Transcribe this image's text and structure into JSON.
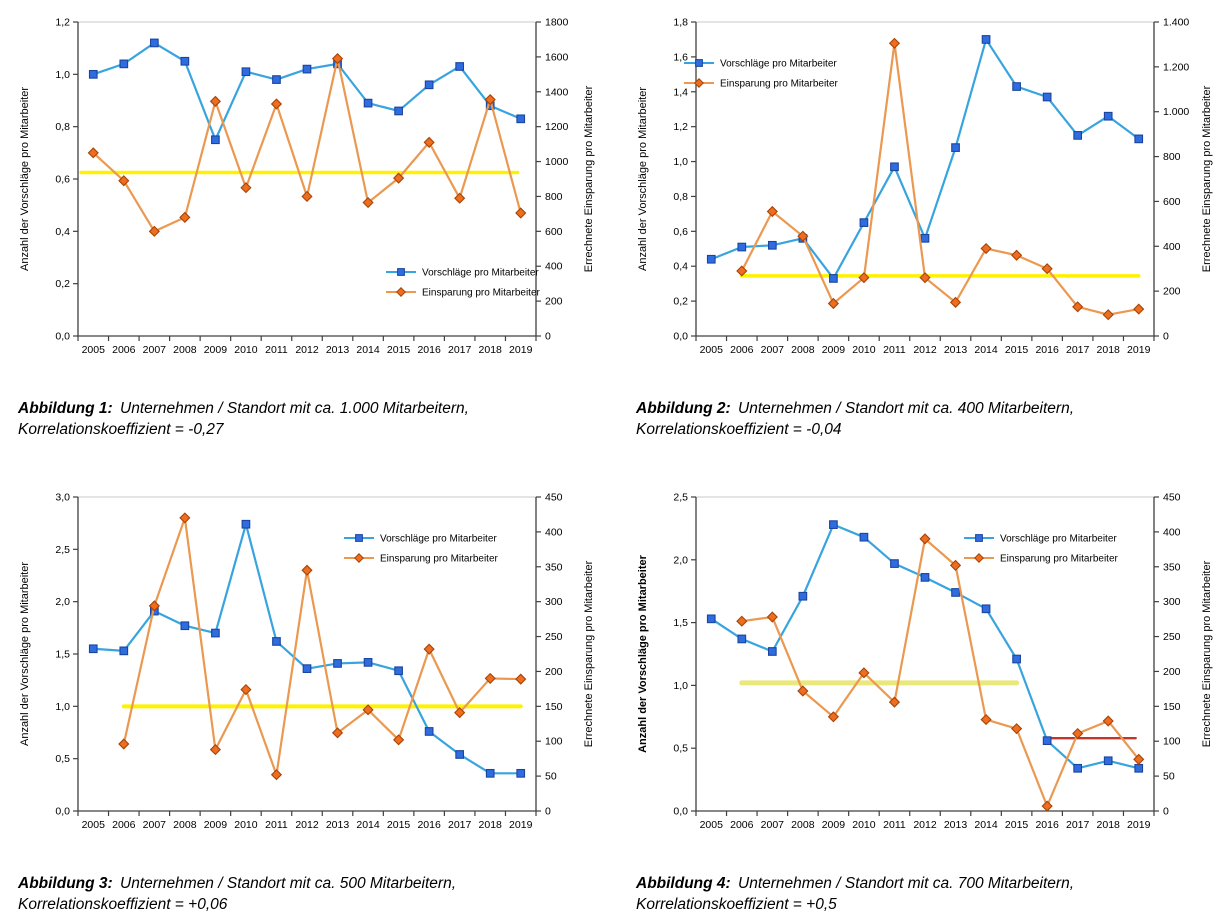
{
  "colors": {
    "series1_line": "#38A4DF",
    "series1_marker_fill": "#2E6CDF",
    "series1_marker_border": "#1A459E",
    "series2_line": "#EB9850",
    "series2_marker_fill": "#F06C1E",
    "series2_marker_border": "#A34508",
    "yellow_reference": "#FFF200",
    "yellow_reference_muted": "#EAE77D",
    "red_reference": "#C23528",
    "axis": "#404040",
    "plot_top_border": "#C8C8C8",
    "text": "#000000"
  },
  "chart_data": [
    {
      "type": "line",
      "categories": [
        "2005",
        "2006",
        "2007",
        "2008",
        "2009",
        "2010",
        "2011",
        "2012",
        "2013",
        "2014",
        "2015",
        "2016",
        "2017",
        "2018",
        "2019"
      ],
      "left_axis": {
        "label": "Anzahl der Vorschläge pro Mitarbeiter",
        "min": 0,
        "max": 1.2,
        "step": 0.2,
        "bold": false,
        "tick_labels": [
          "0,0",
          "0,2",
          "0,4",
          "0,6",
          "0,8",
          "1,0",
          "1,2"
        ]
      },
      "right_axis": {
        "label": "Errechnete Einsparung pro Mitarbeiter",
        "min": 0,
        "max": 1800,
        "step": 200,
        "tick_labels": [
          "0",
          "200",
          "400",
          "600",
          "800",
          "1000",
          "1200",
          "1400",
          "1600",
          "1800"
        ]
      },
      "series": [
        {
          "name": "Vorschläge pro Mitarbeiter",
          "axis": "left",
          "marker": "square",
          "values": [
            1.0,
            1.04,
            1.12,
            1.05,
            0.75,
            1.01,
            0.98,
            1.02,
            1.04,
            0.89,
            0.86,
            0.96,
            1.03,
            0.88,
            0.83
          ]
        },
        {
          "name": "Einsparung pro Mitarbeiter",
          "axis": "right",
          "marker": "diamond",
          "values": [
            1050,
            890,
            600,
            680,
            1345,
            850,
            1330,
            800,
            1590,
            765,
            905,
            1110,
            790,
            1355,
            705
          ]
        }
      ],
      "reference_lines": [
        {
          "name": "yellow-average-line",
          "value": 0.625,
          "from": -0.4,
          "to": 13.9,
          "color": "#FFF200",
          "width": 3.5
        }
      ],
      "legend_pos": {
        "x": 372,
        "y": 264
      },
      "caption": {
        "label": "Abbildung 1:",
        "line1": "Unternehmen / Standort mit ca. 1.000 Mitarbeitern,",
        "line2": "Korrelationskoeffizient = -0,27"
      }
    },
    {
      "type": "line",
      "categories": [
        "2005",
        "2006",
        "2007",
        "2008",
        "2009",
        "2010",
        "2011",
        "2012",
        "2013",
        "2014",
        "2015",
        "2016",
        "2017",
        "2018",
        "2019"
      ],
      "left_axis": {
        "label": "Anzahl der Vorschläge pro Mitarbeiter",
        "min": 0,
        "max": 1.8,
        "step": 0.2,
        "bold": false,
        "tick_labels": [
          "0,0",
          "0,2",
          "0,4",
          "0,6",
          "0,8",
          "1,0",
          "1,2",
          "1,4",
          "1,6",
          "1,8"
        ]
      },
      "right_axis": {
        "label": "Errechnete Einsparung pro Mitarbeiter",
        "min": 0,
        "max": 1400,
        "step": 200,
        "tick_labels": [
          "0",
          "200",
          "400",
          "600",
          "800",
          "1.000",
          "1.200",
          "1.400"
        ]
      },
      "series": [
        {
          "name": "Vorschläge pro Mitarbeiter",
          "axis": "left",
          "marker": "square",
          "values": [
            0.44,
            0.51,
            0.52,
            0.56,
            0.33,
            0.65,
            0.97,
            0.56,
            1.08,
            1.7,
            1.43,
            1.37,
            1.15,
            1.26,
            1.13
          ]
        },
        {
          "name": "Einsparung pro Mitarbeiter",
          "axis": "right",
          "marker": "diamond",
          "values": [
            null,
            290,
            555,
            445,
            145,
            260,
            1305,
            260,
            150,
            390,
            360,
            300,
            130,
            95,
            120
          ]
        }
      ],
      "reference_lines": [
        {
          "name": "yellow-average-line",
          "value": 0.345,
          "from": 1,
          "to": 14,
          "color": "#FFF200",
          "width": 3.5
        }
      ],
      "legend_pos": {
        "x": 52,
        "y": 55
      },
      "caption": {
        "label": "Abbildung 2:",
        "line1": "Unternehmen / Standort mit ca. 400 Mitarbeitern,",
        "line2": "Korrelationskoeffizient = -0,04"
      }
    },
    {
      "type": "line",
      "categories": [
        "2005",
        "2006",
        "2007",
        "2008",
        "2009",
        "2010",
        "2011",
        "2012",
        "2013",
        "2014",
        "2015",
        "2016",
        "2017",
        "2018",
        "2019"
      ],
      "left_axis": {
        "label": "Anzahl der Vorschläge pro Mitarbeiter",
        "min": 0,
        "max": 3.0,
        "step": 0.5,
        "bold": false,
        "tick_labels": [
          "0,0",
          "0,5",
          "1,0",
          "1,5",
          "2,0",
          "2,5",
          "3,0"
        ]
      },
      "right_axis": {
        "label": "Errechnete Einsparung pro Mitarbeiter",
        "min": 0,
        "max": 450,
        "step": 50,
        "tick_labels": [
          "0",
          "50",
          "100",
          "150",
          "200",
          "250",
          "300",
          "350",
          "400",
          "450"
        ]
      },
      "series": [
        {
          "name": "Vorschläge pro Mitarbeiter",
          "axis": "left",
          "marker": "square",
          "values": [
            1.55,
            1.53,
            1.91,
            1.77,
            1.7,
            2.74,
            1.62,
            1.36,
            1.41,
            1.42,
            1.34,
            0.76,
            0.54,
            0.36,
            0.36
          ]
        },
        {
          "name": "Einsparung pro Mitarbeiter",
          "axis": "right",
          "marker": "diamond",
          "values": [
            null,
            96,
            294,
            420,
            88,
            174,
            52,
            345,
            112,
            145,
            102,
            232,
            141,
            190,
            189
          ]
        }
      ],
      "reference_lines": [
        {
          "name": "yellow-average-line",
          "value": 1.0,
          "from": 1,
          "to": 14,
          "color": "#FFF200",
          "width": 4
        }
      ],
      "legend_pos": {
        "x": 330,
        "y": 55
      },
      "caption": {
        "label": "Abbildung 3:",
        "line1": "Unternehmen / Standort mit ca. 500 Mitarbeitern,",
        "line2": "Korrelationskoeffizient = +0,06"
      }
    },
    {
      "type": "line",
      "categories": [
        "2005",
        "2006",
        "2007",
        "2008",
        "2009",
        "2010",
        "2011",
        "2012",
        "2013",
        "2014",
        "2015",
        "2016",
        "2017",
        "2018",
        "2019"
      ],
      "left_axis": {
        "label": "Anzahl der Vorschläge pro Mitarbeiter",
        "min": 0,
        "max": 2.5,
        "step": 0.5,
        "bold": true,
        "tick_labels": [
          "0,0",
          "0,5",
          "1,0",
          "1,5",
          "2,0",
          "2,5"
        ]
      },
      "right_axis": {
        "label": "Errechnete Einsparung pro Mitarbeiter",
        "min": 0,
        "max": 450,
        "step": 50,
        "tick_labels": [
          "0",
          "50",
          "100",
          "150",
          "200",
          "250",
          "300",
          "350",
          "400",
          "450"
        ]
      },
      "series": [
        {
          "name": "Vorschläge pro Mitarbeiter",
          "axis": "left",
          "marker": "square",
          "values": [
            1.53,
            1.37,
            1.27,
            1.71,
            2.28,
            2.18,
            1.97,
            1.86,
            1.74,
            1.61,
            1.21,
            0.56,
            0.34,
            0.4,
            0.34
          ]
        },
        {
          "name": "Einsparung pro Mitarbeiter",
          "axis": "right",
          "marker": "diamond",
          "values": [
            null,
            272,
            278,
            172,
            135,
            198,
            156,
            390,
            352,
            131,
            118,
            7,
            111,
            129,
            74
          ]
        }
      ],
      "reference_lines": [
        {
          "name": "yellow-average-line",
          "value": 1.02,
          "from": 1,
          "to": 10,
          "color": "#EAE77D",
          "width": 5
        },
        {
          "name": "red-average-line",
          "value": 0.58,
          "from": 11,
          "to": 13.9,
          "color": "#C23528",
          "width": 2.4
        }
      ],
      "legend_pos": {
        "x": 332,
        "y": 55
      },
      "caption": {
        "label": "Abbildung 4:",
        "line1": "Unternehmen / Standort mit ca. 700 Mitarbeitern,",
        "line2": "Korrelationskoeffizient = +0,5"
      }
    }
  ]
}
